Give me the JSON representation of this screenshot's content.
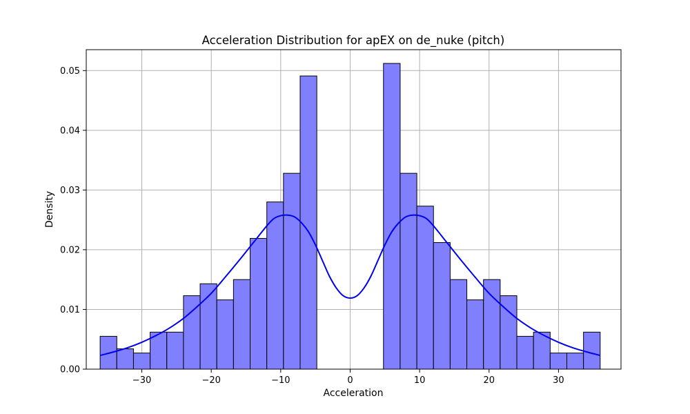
{
  "chart_data": {
    "type": "bar",
    "title": "Acceleration Distribution for apEX on de_nuke (pitch)",
    "xlabel": "Acceleration",
    "ylabel": "Density",
    "xlim": [
      -38.0,
      39.0
    ],
    "ylim": [
      0,
      0.0535
    ],
    "grid": true,
    "xticks": [
      -30,
      -20,
      -10,
      0,
      10,
      20,
      30
    ],
    "xtick_labels": [
      "−30",
      "−20",
      "−10",
      "0",
      "10",
      "20",
      "30"
    ],
    "yticks": [
      0,
      0.01,
      0.02,
      0.03,
      0.04,
      0.05
    ],
    "ytick_labels": [
      "0.00",
      "0.01",
      "0.02",
      "0.03",
      "0.04",
      "0.05"
    ],
    "bar_color": "#8080ff",
    "bar_edge_color": "#000000",
    "kde_color": "#0000ee",
    "bins": [
      {
        "x0": -36.0,
        "x1": -33.6,
        "value": 0.0055
      },
      {
        "x0": -33.6,
        "x1": -31.2,
        "value": 0.0034
      },
      {
        "x0": -31.2,
        "x1": -28.8,
        "value": 0.0027
      },
      {
        "x0": -28.8,
        "x1": -26.4,
        "value": 0.0062
      },
      {
        "x0": -26.4,
        "x1": -24.0,
        "value": 0.0062
      },
      {
        "x0": -24.0,
        "x1": -21.6,
        "value": 0.0123
      },
      {
        "x0": -21.6,
        "x1": -19.2,
        "value": 0.0143
      },
      {
        "x0": -19.2,
        "x1": -16.8,
        "value": 0.0116
      },
      {
        "x0": -16.8,
        "x1": -14.4,
        "value": 0.015
      },
      {
        "x0": -14.4,
        "x1": -12.0,
        "value": 0.0219
      },
      {
        "x0": -12.0,
        "x1": -9.6,
        "value": 0.028
      },
      {
        "x0": -9.6,
        "x1": -7.2,
        "value": 0.0328
      },
      {
        "x0": -7.2,
        "x1": -4.8,
        "value": 0.0491
      },
      {
        "x0": 4.8,
        "x1": 7.2,
        "value": 0.0512
      },
      {
        "x0": 7.2,
        "x1": 9.6,
        "value": 0.0328
      },
      {
        "x0": 9.6,
        "x1": 12.0,
        "value": 0.0273
      },
      {
        "x0": 12.0,
        "x1": 14.4,
        "value": 0.0212
      },
      {
        "x0": 14.4,
        "x1": 16.8,
        "value": 0.015
      },
      {
        "x0": 16.8,
        "x1": 19.2,
        "value": 0.0116
      },
      {
        "x0": 19.2,
        "x1": 21.6,
        "value": 0.015
      },
      {
        "x0": 21.6,
        "x1": 24.0,
        "value": 0.0123
      },
      {
        "x0": 24.0,
        "x1": 26.4,
        "value": 0.0055
      },
      {
        "x0": 26.4,
        "x1": 28.8,
        "value": 0.0062
      },
      {
        "x0": 28.8,
        "x1": 31.2,
        "value": 0.0027
      },
      {
        "x0": 31.2,
        "x1": 33.6,
        "value": 0.0027
      },
      {
        "x0": 33.6,
        "x1": 36.0,
        "value": 0.0062
      }
    ],
    "kde": {
      "x": [
        -36,
        -34,
        -32,
        -30,
        -28,
        -26,
        -24,
        -22,
        -20,
        -18,
        -16,
        -14,
        -12,
        -11,
        -10,
        -9,
        -8,
        -7,
        -6,
        -5,
        -4,
        -3,
        -2,
        -1,
        0,
        1,
        2,
        3,
        4,
        5,
        6,
        7,
        8,
        9,
        10,
        11,
        12,
        14,
        16,
        18,
        20,
        22,
        24,
        26,
        28,
        30,
        32,
        34,
        36
      ],
      "y": [
        0.0023,
        0.0029,
        0.0036,
        0.0045,
        0.0056,
        0.0069,
        0.0085,
        0.0105,
        0.0127,
        0.0154,
        0.0182,
        0.0211,
        0.024,
        0.0252,
        0.0257,
        0.0258,
        0.0255,
        0.0245,
        0.023,
        0.0208,
        0.0182,
        0.0156,
        0.0136,
        0.0123,
        0.0119,
        0.0123,
        0.0136,
        0.0156,
        0.0182,
        0.0208,
        0.023,
        0.0245,
        0.0255,
        0.0258,
        0.0257,
        0.0252,
        0.024,
        0.0211,
        0.0182,
        0.0154,
        0.0127,
        0.0105,
        0.0085,
        0.0069,
        0.0056,
        0.0045,
        0.0036,
        0.0029,
        0.0023
      ]
    }
  }
}
